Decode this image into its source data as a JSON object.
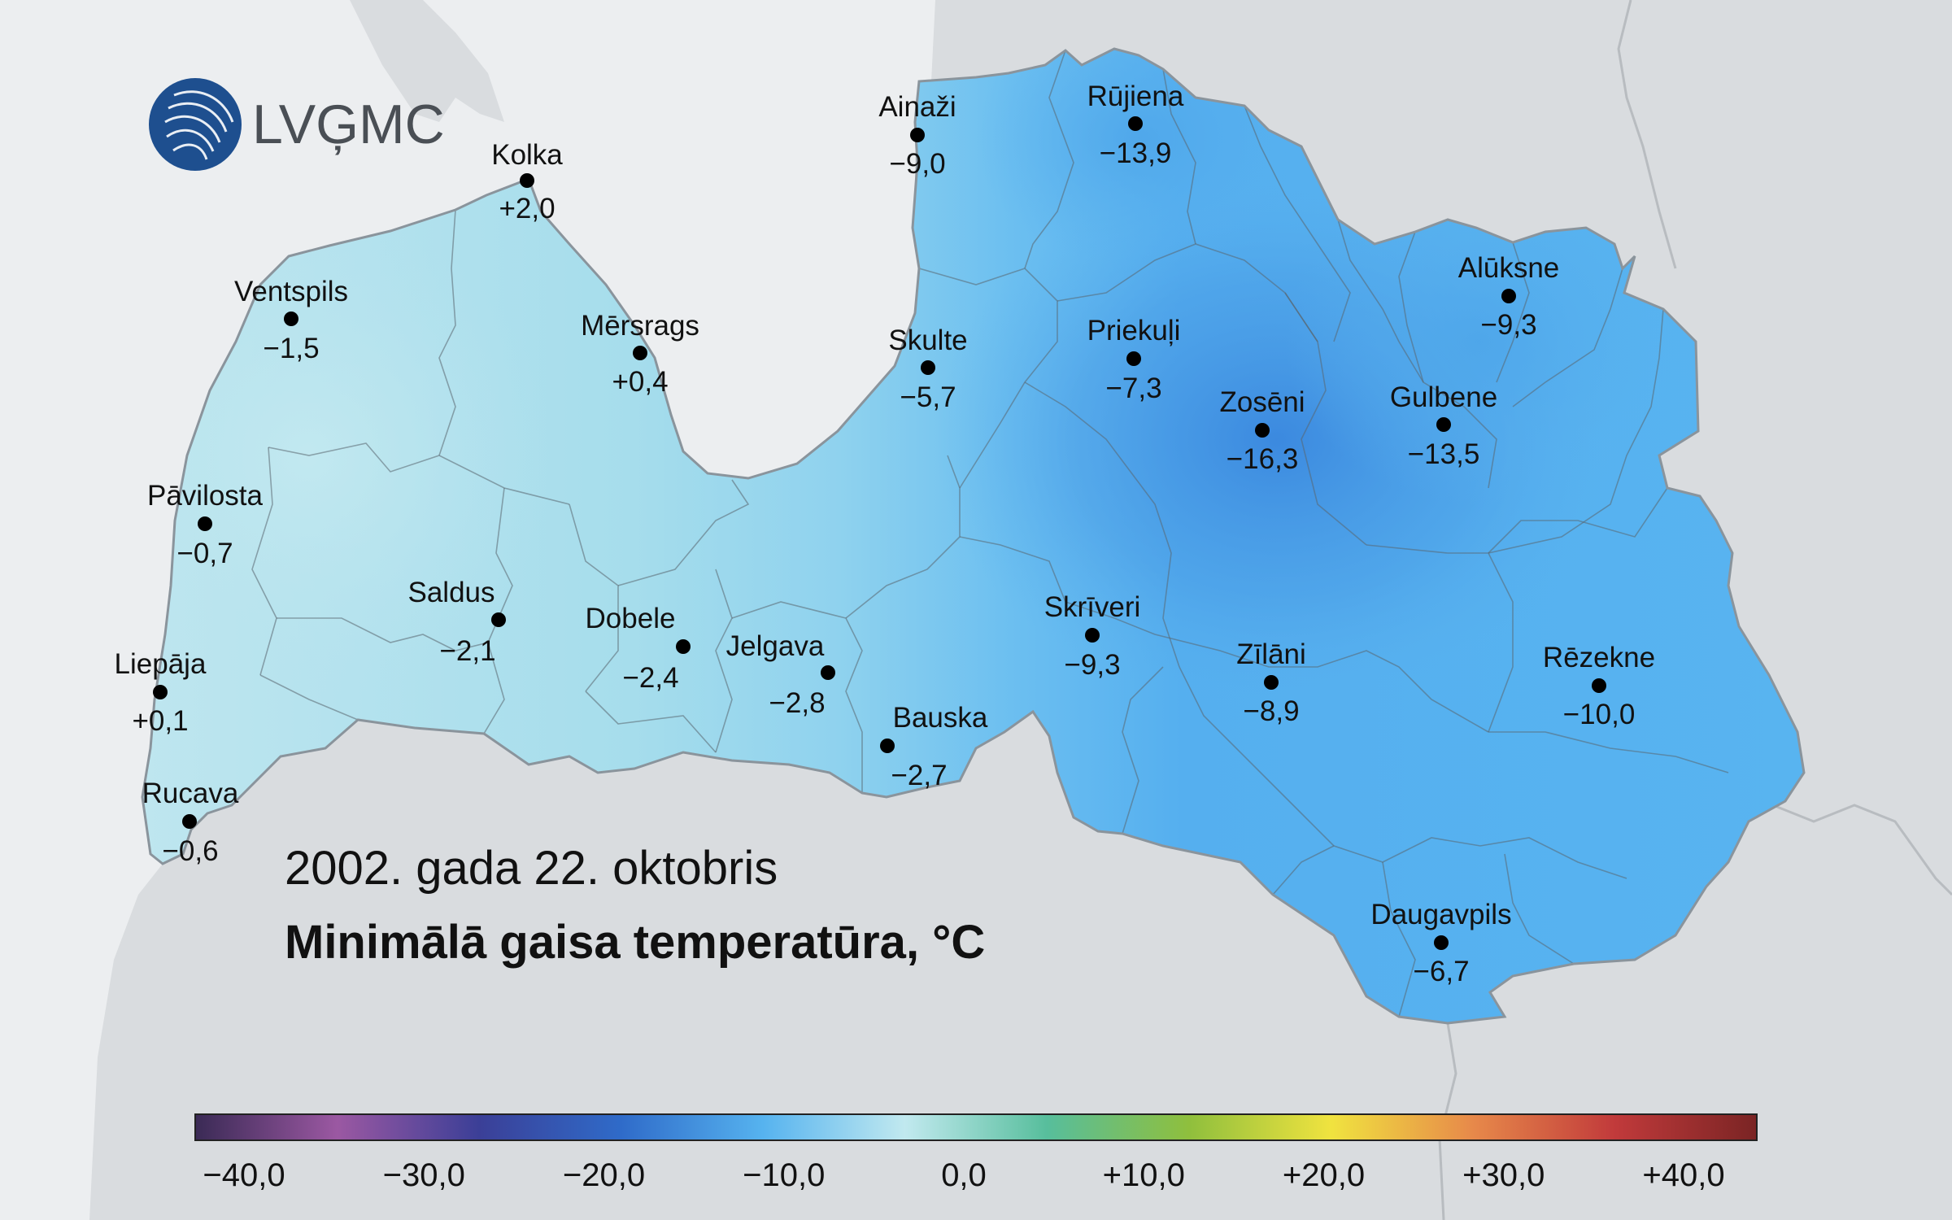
{
  "logo": {
    "text": "LVĢMC"
  },
  "date_label": "2002. gada 22. oktobris",
  "map_title": "Minimālā gaisa temperatūra, °C",
  "stations": [
    {
      "id": "kolka",
      "name": "Kolka",
      "value": "+2,0"
    },
    {
      "id": "ventspils",
      "name": "Ventspils",
      "value": "−1,5"
    },
    {
      "id": "mersrags",
      "name": "Mērsrags",
      "value": "+0,4"
    },
    {
      "id": "pavilosta",
      "name": "Pāvilosta",
      "value": "−0,7"
    },
    {
      "id": "saldus",
      "name": "Saldus",
      "value": "−2,1"
    },
    {
      "id": "dobele",
      "name": "Dobele",
      "value": "−2,4"
    },
    {
      "id": "liepaja",
      "name": "Liepāja",
      "value": "+0,1"
    },
    {
      "id": "jelgava",
      "name": "Jelgava",
      "value": "−2,8"
    },
    {
      "id": "bauska",
      "name": "Bauska",
      "value": "−2,7"
    },
    {
      "id": "rucava",
      "name": "Rucava",
      "value": "−0,6"
    },
    {
      "id": "ainazi",
      "name": "Ainaži",
      "value": "−9,0"
    },
    {
      "id": "rujiena",
      "name": "Rūjiena",
      "value": "−13,9"
    },
    {
      "id": "skulte",
      "name": "Skulte",
      "value": "−5,7"
    },
    {
      "id": "priekuli",
      "name": "Priekuļi",
      "value": "−7,3"
    },
    {
      "id": "alukse",
      "name": "Alūksne",
      "value": "−9,3"
    },
    {
      "id": "zoseni",
      "name": "Zosēni",
      "value": "−16,3"
    },
    {
      "id": "gulbene",
      "name": "Gulbene",
      "value": "−13,5"
    },
    {
      "id": "skriveri",
      "name": "Skrīveri",
      "value": "−9,3"
    },
    {
      "id": "zilani",
      "name": "Zīlāni",
      "value": "−8,9"
    },
    {
      "id": "rezekne",
      "name": "Rēzekne",
      "value": "−10,0"
    },
    {
      "id": "daugavpils",
      "name": "Daugavpils",
      "value": "−6,7"
    }
  ],
  "colors": {
    "sea": "#eceef0",
    "land_outside": "#d9dcdf",
    "cold_strong": "#3a87de",
    "cold": "#5ab1ee",
    "mild": "#bde6ef"
  },
  "colorbar": {
    "ticks": [
      "−40,0",
      "−30,0",
      "−20,0",
      "−10,0",
      "0,0",
      "+10,0",
      "+20,0",
      "+30,0",
      "+40,0"
    ],
    "stops": [
      "#3a2a55",
      "#9b58a2",
      "#3b3f97",
      "#2f6bc9",
      "#56b3ef",
      "#c1e9ef",
      "#57be9c",
      "#8fbf3d",
      "#f0e33f",
      "#e7894a",
      "#c13a3b",
      "#7a2424"
    ]
  }
}
